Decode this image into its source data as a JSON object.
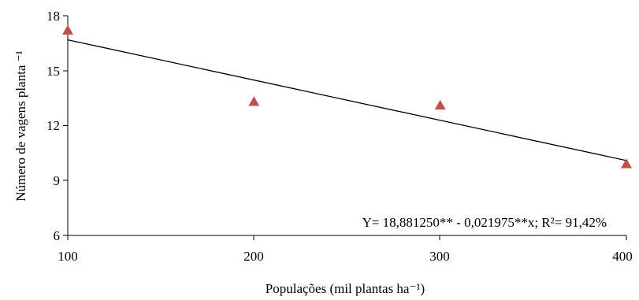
{
  "chart_data": {
    "type": "scatter",
    "x": [
      100,
      200,
      300,
      400
    ],
    "y": [
      17.2,
      13.3,
      13.1,
      9.9
    ],
    "xlabel": "Populações (mil plantas ha⁻¹)",
    "ylabel": "Número de vagens planta ⁻¹",
    "xlim": [
      100,
      400
    ],
    "ylim": [
      6,
      18
    ],
    "xticks": [
      "100",
      "200",
      "300",
      "400"
    ],
    "yticks": [
      "6",
      "9",
      "12",
      "15",
      "18"
    ],
    "marker": "triangle",
    "marker_color": "#c0504d",
    "trendline": {
      "intercept": 18.88125,
      "slope": -0.021975
    },
    "equation": "Y= 18,881250** - 0,021975**x; R²= 91,42%",
    "grid": false
  }
}
